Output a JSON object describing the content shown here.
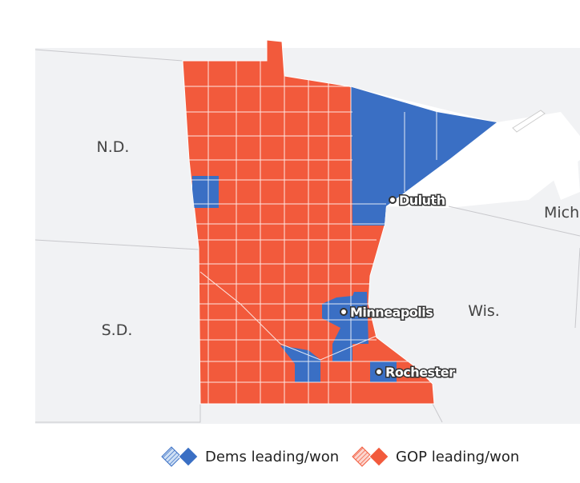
{
  "map": {
    "state_labels": [
      "N.D.",
      "S.D.",
      "Wis.",
      "Mich"
    ],
    "cities": [
      "Duluth",
      "Minneapolis",
      "Rochester"
    ]
  },
  "legend": [
    "Dems leading/won",
    "GOP leading/won"
  ]
}
